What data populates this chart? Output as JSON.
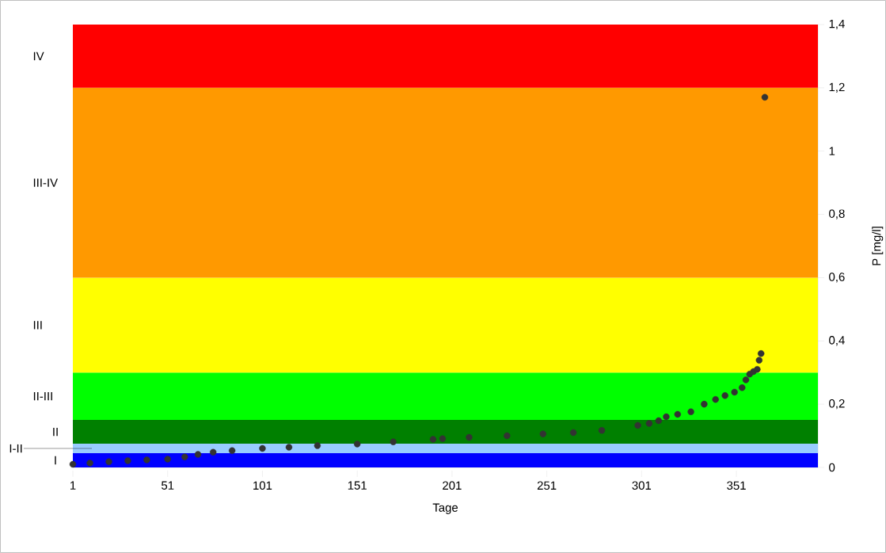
{
  "chart_data": {
    "type": "scatter",
    "xlabel": "Tage",
    "ylabel": "P [mg/l]",
    "marker": "circle",
    "grid": false,
    "legend": false,
    "xlim": [
      1,
      394
    ],
    "ylim": [
      0,
      1.4
    ],
    "xticks": [
      1,
      51,
      101,
      151,
      201,
      251,
      301,
      351
    ],
    "yticks": [
      0,
      {
        "value": 0.2,
        "label": "0,2"
      },
      {
        "value": 0.4,
        "label": "0,4"
      },
      {
        "value": 0.6,
        "label": "0,6"
      },
      {
        "value": 0.8,
        "label": "0,8"
      },
      1,
      {
        "value": 1.2,
        "label": "1,2"
      },
      {
        "value": 1.4,
        "label": "1,4"
      }
    ],
    "bands": [
      {
        "axis": "y",
        "from": 0,
        "to": 0.045,
        "label": "I",
        "color": "#0000ff"
      },
      {
        "axis": "y",
        "from": 0.045,
        "to": 0.075,
        "label": "I-II",
        "color": "#99ccff"
      },
      {
        "axis": "y",
        "from": 0.075,
        "to": 0.15,
        "label": "II",
        "color": "#008000"
      },
      {
        "axis": "y",
        "from": 0.15,
        "to": 0.3,
        "label": "II-III",
        "color": "#00ff00"
      },
      {
        "axis": "y",
        "from": 0.3,
        "to": 0.6,
        "label": "III",
        "color": "#ffff00"
      },
      {
        "axis": "y",
        "from": 0.6,
        "to": 1.2,
        "label": "III-IV",
        "color": "#ff9900"
      },
      {
        "axis": "y",
        "from": 1.2,
        "to": 1.4,
        "label": "IV",
        "color": "#ff0000"
      }
    ],
    "series": [
      {
        "color": "#333333",
        "x": [
          1,
          10,
          20,
          30,
          40,
          51,
          60,
          67,
          75,
          85,
          101,
          115,
          130,
          151,
          170,
          191,
          196,
          210,
          230,
          249,
          265,
          280,
          299,
          305,
          310,
          314,
          320,
          327,
          334,
          340,
          345,
          350,
          354,
          356,
          358,
          360,
          362,
          363,
          364,
          366
        ],
        "values": [
          0.01,
          0.014,
          0.018,
          0.021,
          0.024,
          0.026,
          0.033,
          0.041,
          0.048,
          0.053,
          0.06,
          0.064,
          0.069,
          0.074,
          0.081,
          0.089,
          0.091,
          0.095,
          0.1,
          0.106,
          0.11,
          0.117,
          0.133,
          0.139,
          0.148,
          0.16,
          0.168,
          0.176,
          0.2,
          0.215,
          0.227,
          0.238,
          0.252,
          0.277,
          0.295,
          0.303,
          0.31,
          0.339,
          0.36,
          1.17
        ]
      }
    ]
  }
}
